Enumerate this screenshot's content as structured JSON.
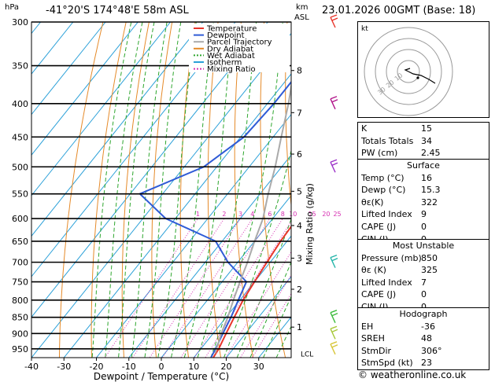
{
  "header": {
    "location": "-41°20'S 174°48'E 58m ASL",
    "time": "23.01.2026 00GMT (Base: 18)",
    "hpa_label": "hPa",
    "km_label": "km",
    "asl_label": "ASL"
  },
  "chart_data": {
    "type": "line",
    "xlabel": "Dewpoint / Temperature (°C)",
    "ylabel": "hPa",
    "mixing_ratio_axis_label": "Mixing Ratio (g/kg)",
    "x_ticks": [
      -40,
      -30,
      -20,
      -10,
      0,
      10,
      20,
      30
    ],
    "xlim": [
      -40,
      40
    ],
    "ylim": [
      980,
      300
    ],
    "y_scale": "log",
    "pressure_levels": [
      300,
      350,
      400,
      450,
      500,
      550,
      600,
      650,
      700,
      750,
      800,
      850,
      900,
      950
    ],
    "km_ticks": [
      {
        "p": 356,
        "label": "8"
      },
      {
        "p": 413,
        "label": "7"
      },
      {
        "p": 478,
        "label": "6"
      },
      {
        "p": 545,
        "label": "5"
      },
      {
        "p": 615,
        "label": "4"
      },
      {
        "p": 690,
        "label": "3"
      },
      {
        "p": 770,
        "label": "2"
      },
      {
        "p": 880,
        "label": "1"
      }
    ],
    "lcl_label": "LCL",
    "lcl_p": 965,
    "mixing_ratio_values": [
      1,
      2,
      3,
      4,
      6,
      8,
      10,
      15,
      20,
      25
    ],
    "legend": [
      {
        "name": "Temperature",
        "color": "#e8352a",
        "dashed": false
      },
      {
        "name": "Dewpoint",
        "color": "#2f5bd6",
        "dashed": false
      },
      {
        "name": "Parcel Trajectory",
        "color": "#aaaaaa",
        "dashed": false
      },
      {
        "name": "Dry Adiabat",
        "color": "#e58a29",
        "dashed": false
      },
      {
        "name": "Wet Adiabat",
        "color": "#2ea62e",
        "dashed": true
      },
      {
        "name": "Isotherm",
        "color": "#2aa0d8",
        "dashed": false
      },
      {
        "name": "Mixing Ratio",
        "color": "#d62fb2",
        "dashed": true
      }
    ],
    "series": [
      {
        "name": "Temperature",
        "points": [
          [
            980,
            16
          ],
          [
            950,
            15.5
          ],
          [
            900,
            14
          ],
          [
            850,
            12.5
          ],
          [
            800,
            11
          ],
          [
            750,
            10
          ],
          [
            700,
            9
          ],
          [
            650,
            8
          ],
          [
            600,
            7.5
          ],
          [
            550,
            6
          ],
          [
            500,
            1
          ],
          [
            450,
            -5
          ],
          [
            400,
            -12.5
          ],
          [
            350,
            -21
          ],
          [
            300,
            -29
          ]
        ]
      },
      {
        "name": "Dewpoint",
        "points": [
          [
            980,
            15.3
          ],
          [
            950,
            14.5
          ],
          [
            900,
            13
          ],
          [
            850,
            11.5
          ],
          [
            800,
            9.5
          ],
          [
            750,
            7.5
          ],
          [
            700,
            -3
          ],
          [
            650,
            -12
          ],
          [
            600,
            -33
          ],
          [
            550,
            -47
          ],
          [
            500,
            -34
          ],
          [
            450,
            -29
          ],
          [
            400,
            -28
          ],
          [
            350,
            -28
          ],
          [
            300,
            -35
          ]
        ]
      },
      {
        "name": "Parcel Trajectory",
        "points": [
          [
            965,
            15.5
          ],
          [
            900,
            12.5
          ],
          [
            850,
            10.5
          ],
          [
            800,
            8
          ],
          [
            750,
            5.5
          ],
          [
            700,
            3
          ],
          [
            650,
            0
          ],
          [
            600,
            -3
          ],
          [
            550,
            -7.5
          ],
          [
            500,
            -12
          ],
          [
            450,
            -17.5
          ],
          [
            400,
            -23.5
          ],
          [
            350,
            -31
          ],
          [
            300,
            -39
          ]
        ]
      }
    ],
    "wind_barbs": [
      {
        "p": 300,
        "color": "#e8352a"
      },
      {
        "p": 400,
        "color": "#b2148a"
      },
      {
        "p": 500,
        "color": "#9b30c8"
      },
      {
        "p": 700,
        "color": "#22b4a8"
      },
      {
        "p": 850,
        "color": "#3dbb3d"
      },
      {
        "p": 900,
        "color": "#a8c83a"
      },
      {
        "p": 950,
        "color": "#d8c63a"
      }
    ]
  },
  "hodograph": {
    "label": "kt",
    "ring_labels": [
      "10",
      "20",
      "30"
    ]
  },
  "indices": [
    {
      "key": "K",
      "value": "15"
    },
    {
      "key": "Totals Totals",
      "value": "34"
    },
    {
      "key": "PW (cm)",
      "value": "2.45"
    }
  ],
  "surface": {
    "title": "Surface",
    "rows": [
      {
        "key": "Temp (°C)",
        "value": "16"
      },
      {
        "key": "Dewp (°C)",
        "value": "15.3"
      },
      {
        "key": "θε(K)",
        "value": "322"
      },
      {
        "key": "Lifted Index",
        "value": "9"
      },
      {
        "key": "CAPE (J)",
        "value": "0"
      },
      {
        "key": "CIN (J)",
        "value": "0"
      }
    ]
  },
  "most_unstable": {
    "title": "Most Unstable",
    "rows": [
      {
        "key": "Pressure (mb)",
        "value": "850"
      },
      {
        "key": "θε (K)",
        "value": "325"
      },
      {
        "key": "Lifted Index",
        "value": "7"
      },
      {
        "key": "CAPE (J)",
        "value": "0"
      },
      {
        "key": "CIN (J)",
        "value": "0"
      }
    ]
  },
  "hodograph_stats": {
    "title": "Hodograph",
    "rows": [
      {
        "key": "EH",
        "value": "-36"
      },
      {
        "key": "SREH",
        "value": "48"
      },
      {
        "key": "StmDir",
        "value": "306°"
      },
      {
        "key": "StmSpd (kt)",
        "value": "23"
      }
    ]
  },
  "copyright": "© weatheronline.co.uk"
}
